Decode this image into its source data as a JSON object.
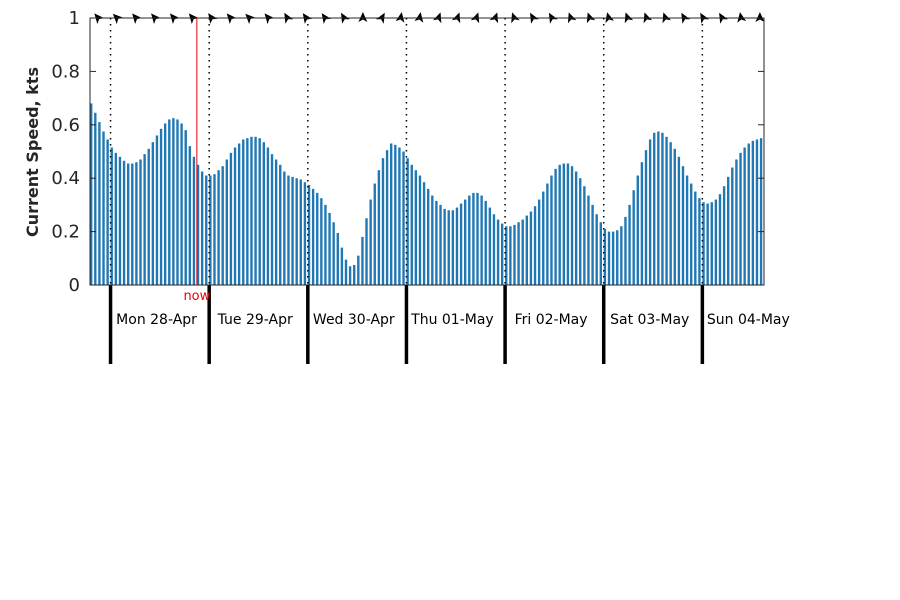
{
  "chart_data": {
    "type": "bar",
    "ylabel": "Current Speed, kts",
    "ylim": [
      0,
      1
    ],
    "yticks": [
      0,
      0.2,
      0.4,
      0.6,
      0.8,
      1
    ],
    "ytick_labels": [
      "0",
      "0.2",
      "0.4",
      "0.6",
      "0.8",
      "1"
    ],
    "hours_per_bar": 1,
    "bar_color": "#1f77b4",
    "grid": false,
    "day_labels": [
      "Mon 28-Apr",
      "Tue 29-Apr",
      "Wed 30-Apr",
      "Thu 01-May",
      "Fri 02-May",
      "Sat 03-May",
      "Sun 04-May"
    ],
    "now_label": "now",
    "now_color": "#e8000b",
    "values": [
      0.68,
      0.645,
      0.61,
      0.575,
      0.545,
      0.515,
      0.495,
      0.48,
      0.465,
      0.455,
      0.455,
      0.46,
      0.47,
      0.49,
      0.51,
      0.535,
      0.56,
      0.585,
      0.605,
      0.62,
      0.625,
      0.62,
      0.605,
      0.58,
      0.52,
      0.48,
      0.45,
      0.425,
      0.41,
      0.41,
      0.415,
      0.43,
      0.445,
      0.47,
      0.495,
      0.515,
      0.53,
      0.545,
      0.55,
      0.555,
      0.555,
      0.55,
      0.535,
      0.515,
      0.49,
      0.47,
      0.45,
      0.425,
      0.41,
      0.405,
      0.4,
      0.395,
      0.385,
      0.375,
      0.36,
      0.345,
      0.325,
      0.3,
      0.27,
      0.235,
      0.195,
      0.14,
      0.095,
      0.07,
      0.075,
      0.11,
      0.18,
      0.25,
      0.32,
      0.38,
      0.43,
      0.475,
      0.505,
      0.53,
      0.525,
      0.515,
      0.5,
      0.475,
      0.45,
      0.43,
      0.41,
      0.385,
      0.36,
      0.335,
      0.315,
      0.3,
      0.285,
      0.28,
      0.28,
      0.29,
      0.305,
      0.32,
      0.335,
      0.345,
      0.345,
      0.335,
      0.315,
      0.29,
      0.265,
      0.245,
      0.23,
      0.22,
      0.22,
      0.225,
      0.235,
      0.245,
      0.26,
      0.275,
      0.295,
      0.32,
      0.35,
      0.38,
      0.41,
      0.435,
      0.45,
      0.455,
      0.455,
      0.445,
      0.425,
      0.4,
      0.37,
      0.335,
      0.3,
      0.265,
      0.235,
      0.21,
      0.2,
      0.2,
      0.205,
      0.22,
      0.255,
      0.3,
      0.355,
      0.41,
      0.46,
      0.505,
      0.545,
      0.57,
      0.575,
      0.57,
      0.555,
      0.535,
      0.51,
      0.48,
      0.445,
      0.41,
      0.38,
      0.35,
      0.325,
      0.31,
      0.305,
      0.31,
      0.32,
      0.34,
      0.37,
      0.405,
      0.44,
      0.47,
      0.495,
      0.515,
      0.53,
      0.54,
      0.545,
      0.55
    ]
  }
}
